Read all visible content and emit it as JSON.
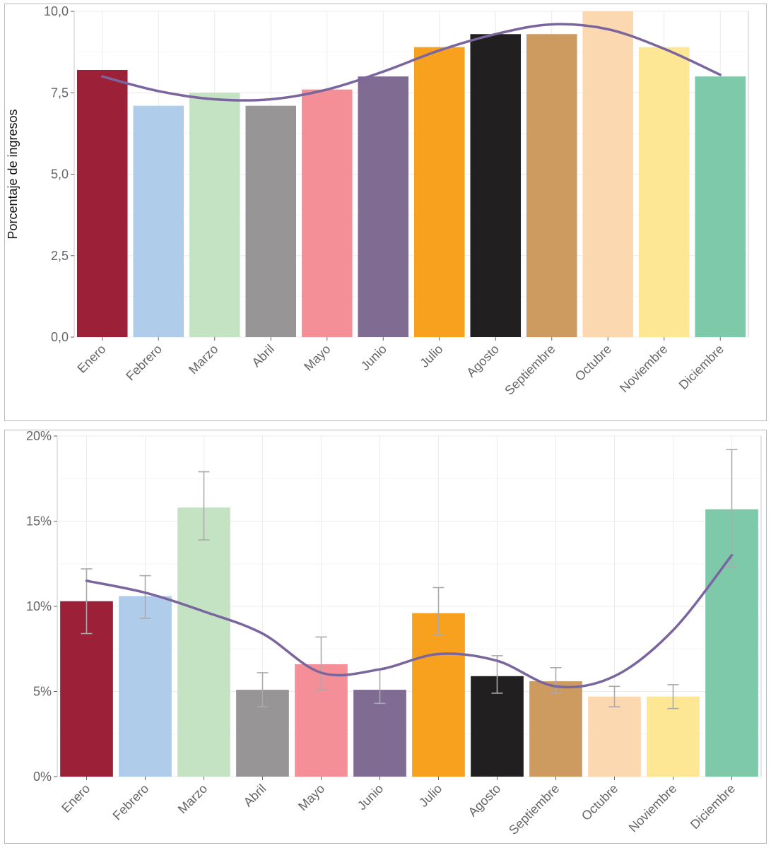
{
  "chart_data": [
    {
      "type": "bar",
      "title": "",
      "xlabel": "",
      "ylabel": "Porcentaje de ingresos",
      "ylim": [
        0,
        10
      ],
      "yticks": [
        0,
        2.5,
        5,
        7.5,
        10
      ],
      "ytick_labels": [
        "0,0",
        "2,5",
        "5,0",
        "7,5",
        "10,0"
      ],
      "categories": [
        "Enero",
        "Febrero",
        "Marzo",
        "Abril",
        "Mayo",
        "Junio",
        "Julio",
        "Agosto",
        "Septiembre",
        "Octubre",
        "Noviembre",
        "Diciembre"
      ],
      "values": [
        8.2,
        7.1,
        7.5,
        7.1,
        7.6,
        8.0,
        8.9,
        9.3,
        9.3,
        10.0,
        8.9,
        8.0
      ],
      "trend": [
        8.0,
        7.55,
        7.3,
        7.3,
        7.6,
        8.15,
        8.8,
        9.3,
        9.6,
        9.45,
        8.85,
        8.05
      ],
      "grid": true,
      "legend": "none"
    },
    {
      "type": "bar",
      "title": "",
      "xlabel": "",
      "ylabel": "",
      "ylim": [
        0,
        20
      ],
      "yticks": [
        0,
        5,
        10,
        15,
        20
      ],
      "ytick_labels": [
        "0%",
        "5%",
        "10%",
        "15%",
        "20%"
      ],
      "categories": [
        "Enero",
        "Febrero",
        "Marzo",
        "Abril",
        "Mayo",
        "Junio",
        "Julio",
        "Agosto",
        "Septiembre",
        "Octubre",
        "Noviembre",
        "Diciembre"
      ],
      "values": [
        10.3,
        10.6,
        15.8,
        5.1,
        6.6,
        5.1,
        9.6,
        5.9,
        5.6,
        4.7,
        4.7,
        15.7
      ],
      "error_low": [
        8.4,
        9.3,
        13.9,
        4.1,
        5.1,
        4.3,
        8.3,
        4.9,
        4.9,
        4.1,
        4.0,
        12.3
      ],
      "error_high": [
        12.2,
        11.8,
        17.9,
        6.1,
        8.2,
        6.3,
        11.1,
        7.1,
        6.4,
        5.3,
        5.4,
        19.2
      ],
      "trend": [
        11.5,
        10.8,
        9.7,
        8.4,
        6.1,
        6.3,
        7.2,
        6.8,
        5.3,
        5.9,
        8.6,
        13.0
      ],
      "grid": true,
      "legend": "none"
    }
  ],
  "bar_colors": [
    "#9c2038",
    "#afcdea",
    "#c3e3c3",
    "#979596",
    "#f48f98",
    "#806b92",
    "#f7a11f",
    "#221f20",
    "#cd9a5f",
    "#fcd8b1",
    "#fde794",
    "#7fc9ab"
  ],
  "trend_color": "#7a659e",
  "errorbar_color": "#aaaaaa"
}
